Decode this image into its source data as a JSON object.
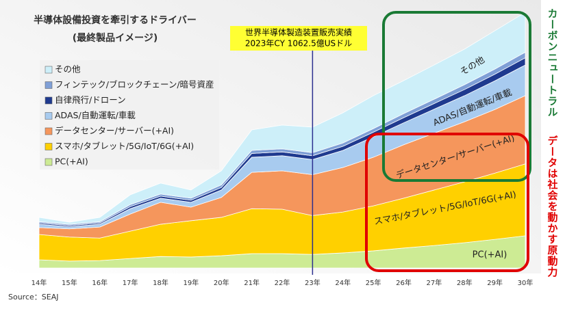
{
  "chart_data": {
    "type": "stacked_area",
    "title": "半導体設備投資を牽引するドライバー",
    "subtitle": "(最終製品イメージ)",
    "categories": [
      "14年",
      "15年",
      "16年",
      "17年",
      "18年",
      "19年",
      "20年",
      "21年",
      "22年",
      "23年",
      "24年",
      "25年",
      "26年",
      "27年",
      "28年",
      "29年",
      "30年"
    ],
    "ylim": [
      0,
      100
    ],
    "series": [
      {
        "name": "PC(+AI)",
        "color": "#cdeb94",
        "values": [
          3.2,
          2.7,
          2.9,
          3.7,
          4.5,
          4.3,
          4.8,
          5.6,
          5.6,
          5.3,
          5.9,
          6.7,
          7.8,
          8.8,
          9.9,
          11.2,
          12.6
        ]
      },
      {
        "name": "スマホ/タブレット/5G/IoT/6G(+AI)",
        "color": "#ffd000",
        "values": [
          9.9,
          9.4,
          8.8,
          10.7,
          12.6,
          14.2,
          15,
          17.6,
          17.4,
          15.2,
          16,
          17.6,
          19.5,
          21.7,
          23.8,
          25.9,
          28.1
        ]
      },
      {
        "name": "データセンター/サーバー(+AI)",
        "color": "#f5965c",
        "values": [
          2.7,
          3.2,
          4.3,
          6.7,
          8.6,
          5.3,
          7.8,
          14.2,
          15,
          16,
          17.4,
          19,
          20.9,
          22.2,
          23.5,
          24.9,
          26.7
        ]
      },
      {
        "name": "ADAS/自動運転/車載",
        "color": "#a8cbef",
        "values": [
          1.3,
          0.8,
          1.1,
          2.1,
          1.6,
          1.9,
          2.9,
          5.9,
          5.9,
          5.9,
          6.7,
          8,
          8.6,
          9.4,
          10.2,
          11.2,
          12
        ]
      },
      {
        "name": "自律飛行/ドローン",
        "color": "#1f3a8f",
        "values": [
          0.5,
          0.5,
          0.5,
          0.8,
          0.8,
          0.8,
          1,
          1.5,
          1.5,
          1.5,
          1.6,
          1.8,
          2,
          2.2,
          2.4,
          2.6,
          2.8
        ]
      },
      {
        "name": "フィンテック/ブロックチェーン/暗号資産",
        "color": "#7f9fd6",
        "values": [
          0.5,
          0.5,
          0.5,
          0.8,
          0.8,
          0.8,
          1,
          1.2,
          1.2,
          1.2,
          1.3,
          1.4,
          1.6,
          1.7,
          1.9,
          2,
          2.2
        ]
      },
      {
        "name": "その他",
        "color": "#cdeff9",
        "values": [
          1.7,
          0.8,
          1.7,
          3.8,
          4.3,
          3.2,
          5.5,
          8,
          9.3,
          10,
          11.8,
          12.9,
          12.9,
          13.4,
          13.9,
          15,
          15.6
        ]
      }
    ],
    "marker_line": {
      "category": "23年",
      "color": "#2b2f8f"
    },
    "callout": [
      "世界半導体製造装置販売実績",
      "2023年CY 1062.5億USドル"
    ],
    "area_labels": [
      "その他",
      "ADAS/自動運転/車載",
      "データセンター/サーバー(+AI)",
      "スマホ/タブレット/5G/IoT/6G(+AI)",
      "PC(+AI)"
    ],
    "side_texts": [
      {
        "text": "カーボンニュートラル",
        "color": "#1a7a35"
      },
      {
        "text": "データは社会を動かす原動力",
        "color": "#e00000"
      }
    ],
    "source": "Source：SEAJ"
  }
}
